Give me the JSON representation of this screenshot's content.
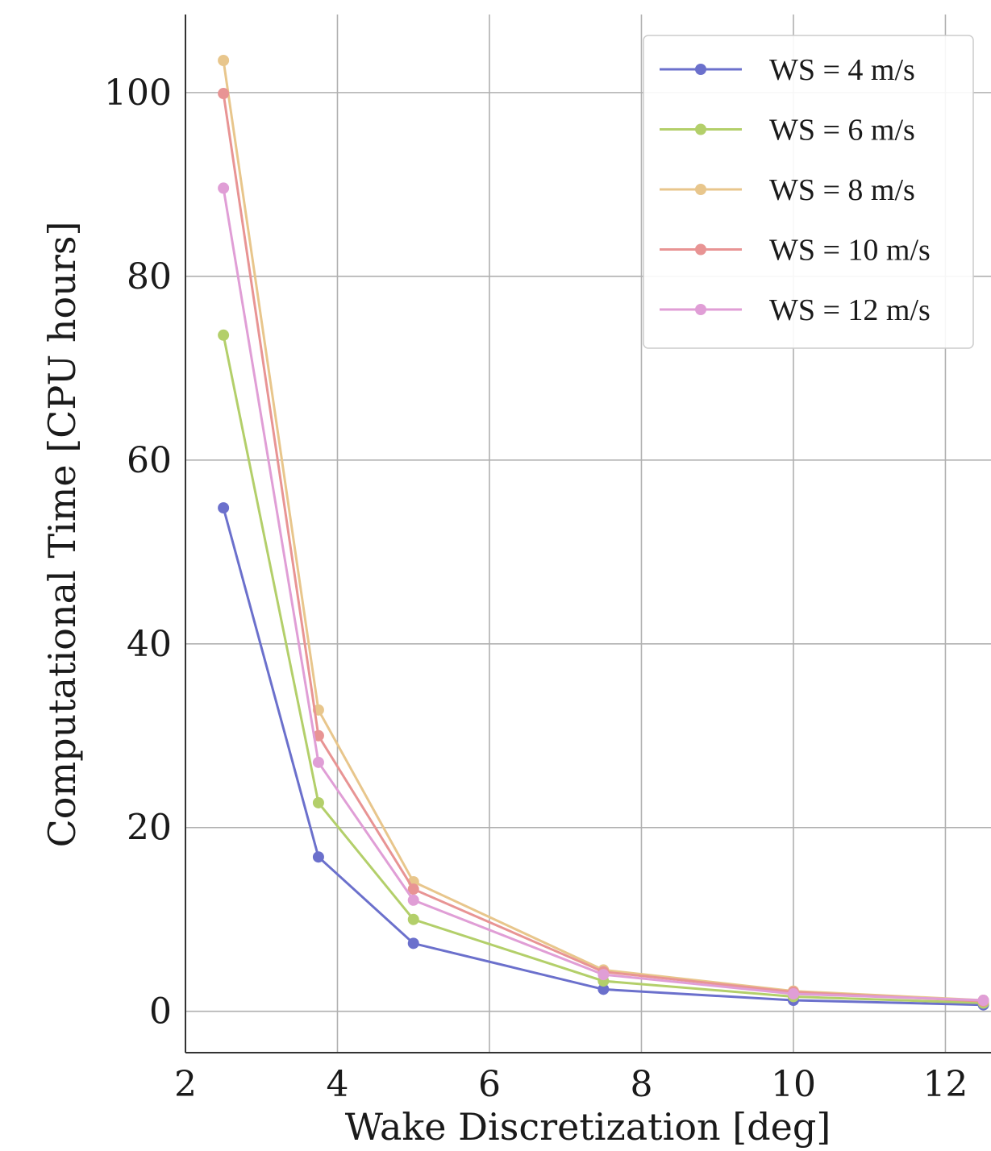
{
  "chart_data": {
    "type": "line",
    "xlabel": "Wake Discretization [deg]",
    "ylabel": "Computational Time [CPU hours]",
    "x": [
      2.5,
      3.75,
      5,
      7.5,
      10,
      12.5
    ],
    "xlim": [
      2,
      12.6
    ],
    "ylim": [
      -4.5,
      108.5
    ],
    "xticks": [
      2,
      4,
      6,
      8,
      10,
      12
    ],
    "yticks": [
      0,
      20,
      40,
      60,
      80,
      100
    ],
    "xtick_labels": [
      "2",
      "4",
      "6",
      "8",
      "10",
      "12"
    ],
    "ytick_labels": [
      "0",
      "20",
      "40",
      "60",
      "80",
      "100"
    ],
    "grid": true,
    "legend_position": "top-right",
    "series": [
      {
        "name": "WS = 4 m/s",
        "color": "#6b70cc",
        "values": [
          54.8,
          16.8,
          7.4,
          2.4,
          1.2,
          0.7
        ]
      },
      {
        "name": "WS = 6 m/s",
        "color": "#b3cf6a",
        "values": [
          73.6,
          22.7,
          10.0,
          3.3,
          1.6,
          0.9
        ]
      },
      {
        "name": "WS = 8 m/s",
        "color": "#e8c68c",
        "values": [
          103.5,
          32.8,
          14.1,
          4.5,
          2.2,
          1.2
        ]
      },
      {
        "name": "WS = 10 m/s",
        "color": "#e89494",
        "values": [
          99.9,
          30.0,
          13.3,
          4.3,
          2.1,
          1.1
        ]
      },
      {
        "name": "WS = 12 m/s",
        "color": "#e09ed6",
        "values": [
          89.6,
          27.1,
          12.1,
          4.0,
          1.9,
          1.2
        ]
      }
    ]
  }
}
